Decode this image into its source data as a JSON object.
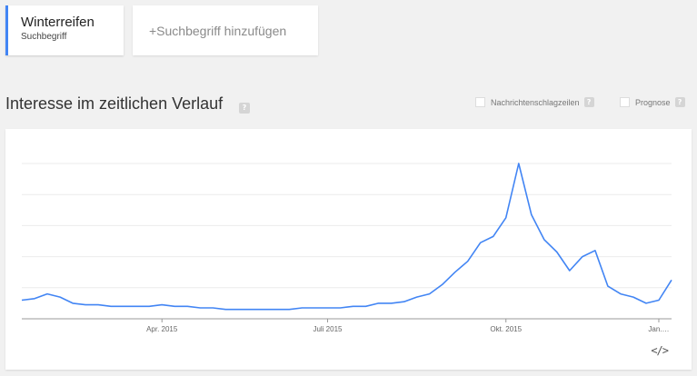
{
  "search_term": {
    "name": "Winterreifen",
    "type": "Suchbegriff"
  },
  "add_term_label": "+Suchbegriff hinzufügen",
  "section": {
    "title": "Interesse im zeitlichen Verlauf",
    "help": "?"
  },
  "options": {
    "news_label": "Nachrichtenschlagzeilen",
    "forecast_label": "Prognose",
    "help": "?"
  },
  "embed_label": "</>",
  "colors": {
    "series": "#4285f4",
    "accent": "#4285f4",
    "grid": "#ebebeb"
  },
  "chart_data": {
    "type": "line",
    "ylim": [
      0,
      100
    ],
    "grid": true,
    "x_ticks": [
      {
        "label": "Apr. 2015",
        "index": 11
      },
      {
        "label": "Juli 2015",
        "index": 24
      },
      {
        "label": "Okt. 2015",
        "index": 38
      },
      {
        "label": "Jan.…",
        "index": 50
      }
    ],
    "series": [
      {
        "values": [
          12,
          13,
          16,
          14,
          10,
          9,
          9,
          8,
          8,
          8,
          8,
          9,
          8,
          8,
          7,
          7,
          6,
          6,
          6,
          6,
          6,
          6,
          7,
          7,
          7,
          7,
          8,
          8,
          10,
          10,
          11,
          14,
          16,
          22,
          30,
          37,
          49,
          53,
          65,
          100,
          67,
          51,
          43,
          31,
          40,
          44,
          21,
          16,
          14,
          10,
          12,
          25
        ]
      }
    ]
  }
}
